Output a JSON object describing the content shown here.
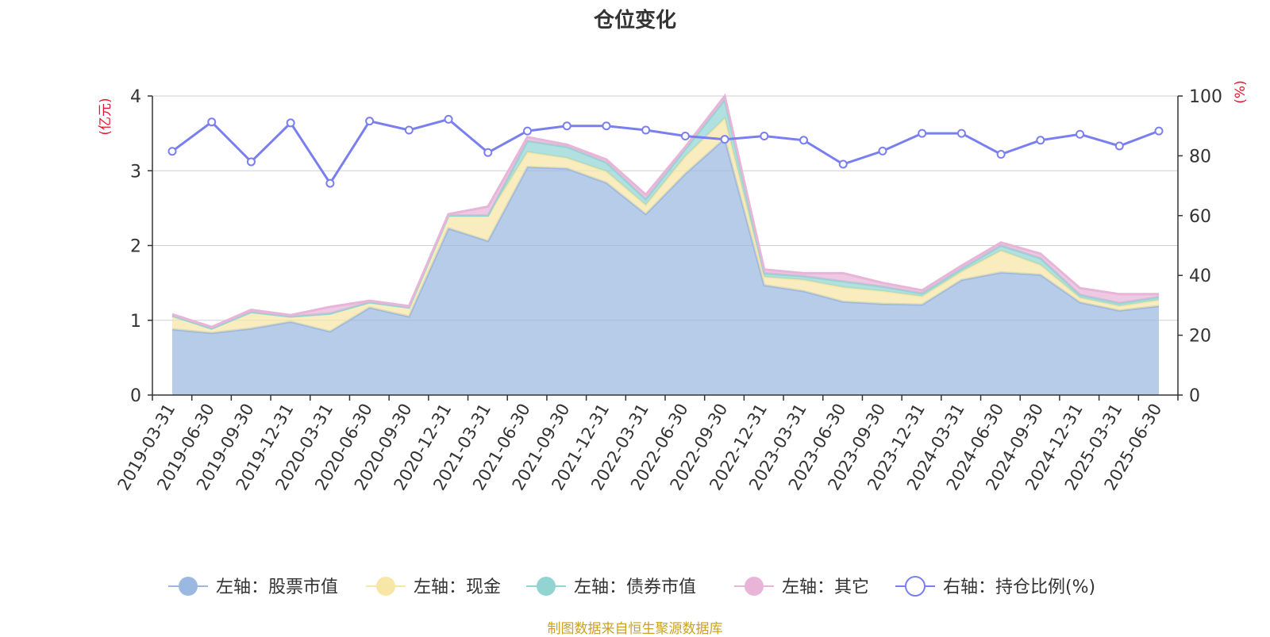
{
  "colors": {
    "stock": "#9bb8e0",
    "cash": "#f7e6a6",
    "bond": "#92d4d2",
    "other": "#e8b4d8",
    "ratio": "#7a7ff0",
    "axis_unit": "#e8132b",
    "source": "#c9a227"
  },
  "source_note": "制图数据来自恒生聚源数据库",
  "chart_data": {
    "type": "area",
    "title": "仓位变化",
    "left_axis_unit": "(亿元)",
    "right_axis_unit": "(%)",
    "ylim_left": [
      0,
      4
    ],
    "ylim_right": [
      0,
      100
    ],
    "left_ticks": [
      0,
      1,
      2,
      3,
      4
    ],
    "right_ticks": [
      0,
      20,
      40,
      60,
      80,
      100
    ],
    "grid": true,
    "legend_position": "bottom",
    "categories": [
      "2019-03-31",
      "2019-06-30",
      "2019-09-30",
      "2019-12-31",
      "2020-03-31",
      "2020-06-30",
      "2020-09-30",
      "2020-12-31",
      "2021-03-31",
      "2021-06-30",
      "2021-09-30",
      "2021-12-31",
      "2022-03-31",
      "2022-06-30",
      "2022-09-30",
      "2022-12-31",
      "2023-03-31",
      "2023-06-30",
      "2023-09-30",
      "2023-12-31",
      "2024-03-31",
      "2024-06-30",
      "2024-09-30",
      "2024-12-31",
      "2025-03-31",
      "2025-06-30"
    ],
    "series": [
      {
        "name": "左轴：股票市值",
        "axis": "left",
        "kind": "stacked-area",
        "color_key": "stock",
        "values": [
          0.88,
          0.83,
          0.89,
          0.98,
          0.85,
          1.17,
          1.05,
          2.23,
          2.06,
          3.05,
          3.03,
          2.84,
          2.42,
          2.96,
          3.43,
          1.47,
          1.39,
          1.25,
          1.22,
          1.21,
          1.54,
          1.64,
          1.61,
          1.24,
          1.13,
          1.19
        ]
      },
      {
        "name": "左轴：现金",
        "axis": "left",
        "kind": "stacked-area",
        "color_key": "cash",
        "values": [
          0.18,
          0.06,
          0.22,
          0.07,
          0.24,
          0.07,
          0.12,
          0.17,
          0.34,
          0.2,
          0.14,
          0.15,
          0.12,
          0.23,
          0.27,
          0.11,
          0.15,
          0.19,
          0.17,
          0.11,
          0.11,
          0.29,
          0.13,
          0.06,
          0.06,
          0.08
        ]
      },
      {
        "name": "左轴：债券市值",
        "axis": "left",
        "kind": "stacked-area",
        "color_key": "bond",
        "values": [
          0.0,
          0.0,
          0.0,
          0.0,
          0.0,
          0.0,
          0.0,
          0.0,
          0.0,
          0.15,
          0.15,
          0.12,
          0.08,
          0.1,
          0.25,
          0.05,
          0.05,
          0.08,
          0.06,
          0.04,
          0.04,
          0.07,
          0.09,
          0.04,
          0.04,
          0.04
        ]
      },
      {
        "name": "左轴：其它",
        "axis": "left",
        "kind": "stacked-area",
        "color_key": "other",
        "values": [
          0.02,
          0.02,
          0.03,
          0.02,
          0.09,
          0.02,
          0.02,
          0.02,
          0.12,
          0.05,
          0.03,
          0.04,
          0.06,
          0.03,
          0.05,
          0.05,
          0.04,
          0.11,
          0.05,
          0.04,
          0.04,
          0.04,
          0.06,
          0.09,
          0.12,
          0.04
        ]
      },
      {
        "name": "右轴：持仓比例(%)",
        "axis": "right",
        "kind": "line",
        "color_key": "ratio",
        "values": [
          81.5,
          91.3,
          78,
          91,
          70.8,
          91.6,
          88.6,
          92.2,
          81.1,
          88.3,
          90.0,
          90.0,
          88.6,
          86.6,
          85.5,
          86.6,
          85.2,
          77.2,
          81.6,
          87.5,
          87.5,
          80.5,
          85.2,
          87.2,
          83.3,
          88.3
        ]
      }
    ]
  }
}
